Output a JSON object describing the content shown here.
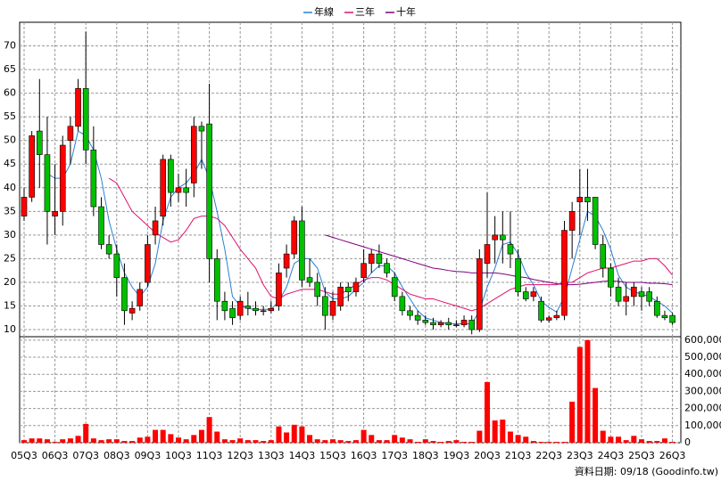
{
  "chart_data": [
    {
      "type": "candlestick",
      "legend": "top",
      "grid": true,
      "up_color": "#ff0000",
      "down_color": "#00c000",
      "ylim": [
        8.5,
        75
      ],
      "yticks": [
        10,
        15,
        20,
        25,
        30,
        35,
        40,
        45,
        50,
        55,
        60,
        65,
        70
      ],
      "open": [
        34,
        38,
        52,
        47,
        34,
        35,
        50,
        53,
        61,
        48,
        36,
        28,
        26,
        21,
        13.5,
        15,
        20,
        30,
        34,
        46,
        39,
        40,
        41,
        53,
        53.5,
        25,
        16,
        14.5,
        13,
        15,
        14.5,
        14,
        14,
        15,
        23,
        26,
        33,
        21,
        20,
        17,
        13,
        15,
        19,
        18,
        21,
        24,
        26,
        24,
        21,
        17,
        14,
        13,
        12,
        11.5,
        11,
        11.5,
        11,
        11,
        12,
        10,
        24,
        29,
        30,
        28,
        25,
        18,
        17,
        16,
        12,
        12.5,
        13,
        31,
        37,
        38,
        38,
        28,
        23,
        19,
        16,
        17,
        18,
        18,
        16,
        13,
        13
      ],
      "close": [
        38,
        51,
        47,
        35,
        35,
        49,
        53,
        61,
        48,
        36,
        28,
        26,
        21,
        14,
        14.5,
        18.5,
        28,
        33,
        46,
        39,
        40,
        39,
        53,
        52,
        25,
        16,
        14,
        12.5,
        16,
        14.5,
        14,
        14,
        14.5,
        22,
        26,
        33,
        20.5,
        20,
        17,
        13,
        16,
        19,
        18,
        20,
        24,
        26,
        24,
        22,
        17,
        14,
        13,
        12,
        11.5,
        11,
        11.5,
        11,
        11,
        12,
        10,
        25,
        28,
        30,
        29,
        26,
        18,
        16.5,
        18,
        12,
        12.5,
        13,
        31,
        35,
        38,
        37,
        28,
        23,
        19,
        16,
        17,
        19,
        17,
        16,
        13,
        12.5,
        11.5
      ],
      "high": [
        40,
        52,
        63,
        55,
        45,
        51,
        55,
        63,
        73,
        53,
        38,
        30,
        28,
        24,
        16,
        20,
        30,
        36,
        47,
        47,
        43,
        44,
        55,
        54,
        62,
        27,
        18,
        16,
        17,
        18,
        16,
        15,
        16,
        24,
        28,
        34,
        36,
        25,
        22,
        19,
        18,
        20,
        20,
        21,
        27,
        27,
        28,
        25,
        22,
        18,
        15,
        14,
        13,
        12.5,
        12,
        12.5,
        12,
        13,
        13,
        27,
        39,
        34,
        35,
        35,
        27,
        19,
        19,
        17,
        13,
        14,
        33,
        37,
        44,
        44,
        38,
        30,
        24,
        21,
        20,
        20,
        19,
        19,
        17,
        14,
        13.5
      ],
      "low": [
        33,
        37,
        40,
        28,
        30,
        32,
        45,
        52,
        45,
        34,
        27,
        25,
        17,
        11,
        12,
        14,
        19,
        28,
        32,
        36,
        37,
        36,
        38,
        44,
        20,
        12,
        12,
        11,
        12,
        13,
        13,
        13,
        13.5,
        14,
        21,
        25,
        19,
        19,
        15,
        10,
        12,
        14,
        16,
        17,
        20,
        22,
        23,
        21,
        16,
        13,
        12,
        11,
        11,
        10,
        10.5,
        10,
        10.5,
        10.5,
        9,
        9.5,
        21,
        24,
        24,
        23,
        17,
        16,
        16,
        11.5,
        11.5,
        12,
        12,
        25,
        30,
        33,
        27,
        21,
        17,
        15,
        13,
        15,
        14,
        15,
        12.5,
        12,
        11
      ],
      "series": [
        {
          "name": "年線",
          "color": "#2a7fd4",
          "values": [
            null,
            null,
            null,
            43,
            42,
            42,
            45,
            52,
            51,
            48,
            42,
            33,
            27,
            22,
            19,
            17,
            19,
            24,
            33,
            38,
            40,
            41,
            43,
            46,
            42,
            35,
            27,
            17,
            15,
            14.5,
            14.2,
            14.3,
            14.3,
            16,
            19,
            24,
            25,
            25,
            23,
            18,
            16.5,
            16.5,
            17,
            18.5,
            20,
            22,
            23.5,
            23.5,
            22,
            19,
            16.5,
            14,
            12.5,
            12,
            11.5,
            11.3,
            11.2,
            11.3,
            11.2,
            14,
            19,
            23,
            28,
            28.5,
            26,
            22,
            19.5,
            16,
            14.7,
            13.7,
            17,
            23,
            29,
            35,
            34,
            31,
            27,
            21.5,
            19,
            18,
            17.5,
            17,
            16,
            15,
            13.5
          ]
        },
        {
          "name": "三年",
          "color": "#e0106e",
          "values": [
            null,
            null,
            null,
            null,
            null,
            null,
            null,
            null,
            null,
            null,
            null,
            42,
            41,
            38,
            35,
            33.5,
            32,
            30.5,
            29.5,
            28.5,
            29,
            31,
            33.5,
            34,
            34,
            33.5,
            32,
            29.5,
            27,
            25,
            23,
            19.5,
            17,
            16.5,
            17.5,
            18,
            18.5,
            18.5,
            18.5,
            18,
            17.5,
            17.5,
            18.5,
            19.5,
            20.5,
            21,
            21,
            20.5,
            19.5,
            18.5,
            17.5,
            17,
            16.5,
            16.5,
            16,
            15.5,
            15,
            14.5,
            14,
            14.5,
            15.5,
            16.5,
            17.5,
            18.5,
            19,
            19.5,
            19.5,
            19.5,
            19.5,
            19.5,
            20,
            20,
            21,
            22,
            22.5,
            23,
            23,
            23.5,
            24,
            24.5,
            24.5,
            25,
            25,
            23.5,
            21.5
          ]
        },
        {
          "name": "十年",
          "color": "#800080",
          "values": [
            null,
            null,
            null,
            null,
            null,
            null,
            null,
            null,
            null,
            null,
            null,
            null,
            null,
            null,
            null,
            null,
            null,
            null,
            null,
            null,
            null,
            null,
            null,
            null,
            null,
            null,
            null,
            null,
            null,
            null,
            null,
            null,
            null,
            null,
            null,
            null,
            null,
            null,
            null,
            30,
            29.5,
            29,
            28.5,
            28,
            27.5,
            27,
            26.5,
            26,
            25.5,
            25,
            24.5,
            24,
            23.5,
            23,
            22.8,
            22.5,
            22.3,
            22.2,
            22,
            22,
            22,
            22,
            21.8,
            21.5,
            21.2,
            21,
            20.6,
            20.3,
            20,
            19.7,
            19.5,
            19.5,
            19.6,
            19.8,
            20,
            20.2,
            20.3,
            20.2,
            20,
            20,
            20,
            19.8,
            19.8,
            19.7,
            19.5
          ]
        }
      ]
    },
    {
      "type": "bar",
      "grid": true,
      "color": "#ff0000",
      "categories": [
        "05Q3",
        null,
        null,
        null,
        "06Q3",
        null,
        null,
        null,
        "07Q3",
        null,
        null,
        null,
        "08Q3",
        null,
        null,
        null,
        "09Q3",
        null,
        null,
        null,
        "10Q3",
        null,
        null,
        null,
        "11Q3",
        null,
        null,
        null,
        "12Q3",
        null,
        null,
        null,
        "13Q3",
        null,
        null,
        null,
        "14Q3",
        null,
        null,
        null,
        "15Q3",
        null,
        null,
        null,
        "16Q3",
        null,
        null,
        null,
        "17Q3",
        null,
        null,
        null,
        "18Q3",
        null,
        null,
        null,
        "19Q3",
        null,
        null,
        null,
        "20Q3",
        null,
        null,
        null,
        "21Q3",
        null,
        null,
        null,
        "22Q3",
        null,
        null,
        null,
        "23Q3",
        null,
        null,
        null,
        "24Q3",
        null,
        null,
        null,
        "25Q3",
        null,
        null,
        null,
        "26Q3"
      ],
      "values": [
        15000,
        25000,
        25000,
        20000,
        5000,
        20000,
        25000,
        40000,
        110000,
        25000,
        15000,
        20000,
        20000,
        10000,
        10000,
        30000,
        35000,
        75000,
        75000,
        50000,
        30000,
        20000,
        45000,
        75000,
        150000,
        65000,
        20000,
        15000,
        25000,
        15000,
        15000,
        10000,
        15000,
        95000,
        60000,
        105000,
        95000,
        45000,
        20000,
        15000,
        20000,
        15000,
        10000,
        15000,
        75000,
        45000,
        15000,
        15000,
        45000,
        30000,
        20000,
        5000,
        20000,
        10000,
        5000,
        10000,
        15000,
        5000,
        5000,
        70000,
        355000,
        130000,
        135000,
        65000,
        45000,
        35000,
        10000,
        5000,
        5000,
        5000,
        5000,
        240000,
        560000,
        600000,
        320000,
        70000,
        35000,
        35000,
        15000,
        40000,
        20000,
        10000,
        10000,
        25000,
        5000
      ],
      "ylim": [
        0,
        620000
      ],
      "yticks": [
        0,
        {
          "value": 100000,
          "label": "100,000"
        },
        {
          "value": 200000,
          "label": "200,000"
        },
        {
          "value": 300000,
          "label": "300,000"
        },
        {
          "value": 400000,
          "label": "400,000"
        },
        {
          "value": 500000,
          "label": "500,000"
        },
        {
          "value": 600000,
          "label": "600,000"
        }
      ]
    }
  ],
  "source": "資料日期: 09/18 (Goodinfo.tw)"
}
